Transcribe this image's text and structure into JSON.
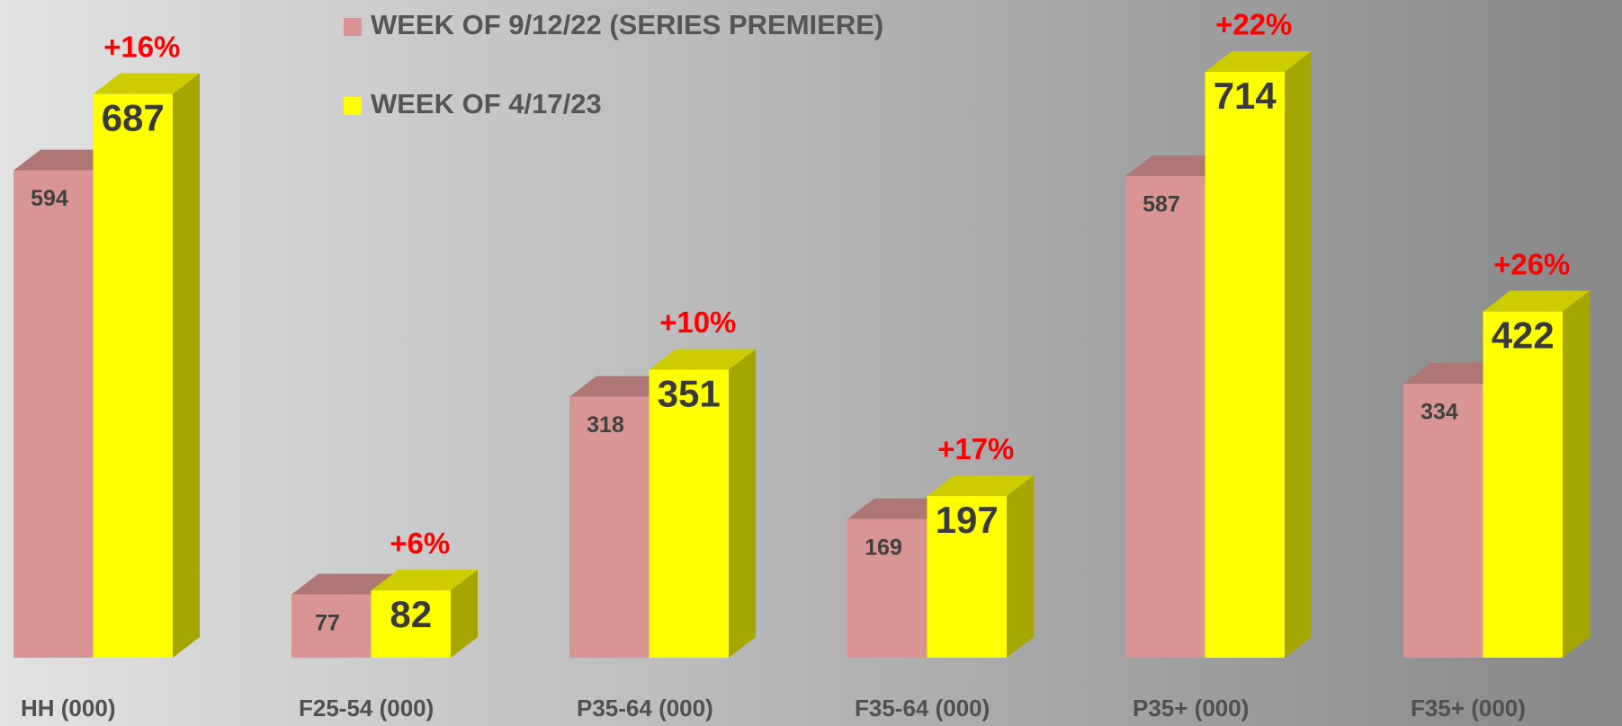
{
  "chart_data": {
    "type": "bar3d",
    "categories": [
      "HH (000)",
      "F25-54 (000)",
      "P35-64 (000)",
      "F35-64 (000)",
      "P35+ (000)",
      "F35+ (000)"
    ],
    "series": [
      {
        "name": "WEEK OF 9/12/22 (SERIES PREMIERE)",
        "color": "#d99594",
        "values": [
          594,
          77,
          318,
          169,
          587,
          334
        ]
      },
      {
        "name": "WEEK OF 4/17/23",
        "color": "#ffff00",
        "values": [
          687,
          82,
          351,
          197,
          714,
          422
        ]
      }
    ],
    "annotations": [
      "+16%",
      "+6%",
      "+10%",
      "+17%",
      "+22%",
      "+26%"
    ]
  }
}
